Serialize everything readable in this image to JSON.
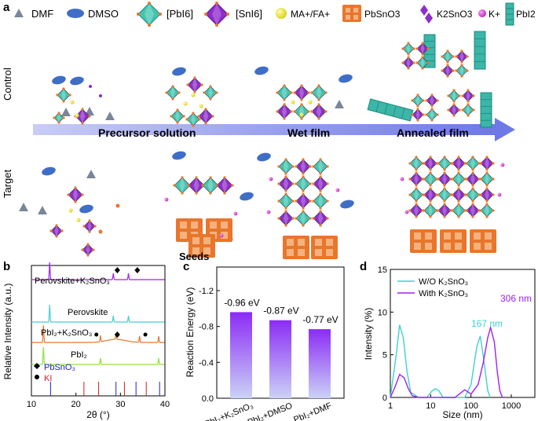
{
  "panels": {
    "a": "a",
    "b": "b",
    "c": "c",
    "d": "d"
  },
  "legend": {
    "dmf": "DMF",
    "dmso": "DMSO",
    "pbi6": "[PbI6]",
    "sni6": "[SnI6]",
    "mafa": "MA+/FA+",
    "pbsno3": "PbSnO3",
    "k2sno3": "K2SnO3",
    "kplus": "K+",
    "pbi2": "PbI2"
  },
  "panel_a": {
    "row_control": "Control",
    "row_target": "Target",
    "stage_precursor": "Precursor solution",
    "stage_wet": "Wet film",
    "stage_annealed": "Annealed film",
    "seeds": "Seeds"
  },
  "colors": {
    "dmf": "#7a8699",
    "dmso": "#3f6ec6",
    "pbi6": "#45c4b0",
    "sni6": "#8e2ec8",
    "mafa": "#ece43a",
    "pbsno3": "#e8762c",
    "kplus": "#d637d3",
    "pbi2": "#3bb6a8",
    "arrow": "#7f86e8",
    "b_purple": "#a020f0",
    "b_cyan": "#40d0d0",
    "b_orange": "#e8762c",
    "b_green": "#90e040",
    "b_blue": "#2020d0",
    "b_red": "#d02020"
  },
  "chart_data": [
    {
      "type": "line",
      "panel": "b",
      "xlabel": "2θ (°)",
      "ylabel": "Relative Intensity (a.u.)",
      "xlim": [
        10,
        40
      ],
      "xticks": [
        10,
        20,
        30,
        40
      ],
      "series": [
        {
          "name": "Perovskite+K2SnO3",
          "peaks": [
            14.1,
            28.4,
            31.8,
            40.2
          ],
          "marker_positions": [
            29.3,
            33.8
          ]
        },
        {
          "name": "Perovskite",
          "peaks": [
            14.1,
            28.4,
            31.8,
            40.2
          ]
        },
        {
          "name": "PbI2+K2SnO3",
          "peaks": [
            12.7,
            25.5,
            29.0,
            34.3,
            38.6
          ],
          "marker_positions": [
            24.6,
            29.3,
            35.6
          ]
        },
        {
          "name": "PbI2",
          "peaks": [
            12.7,
            25.5,
            38.6
          ]
        }
      ],
      "reference": [
        {
          "name": "PbSnO3",
          "marker": "◆",
          "sticks": [
            14.3,
            29.0,
            33.5,
            38.8
          ]
        },
        {
          "name": "KI",
          "marker": "●",
          "sticks": [
            21.8,
            25.1,
            30.9,
            35.8
          ]
        }
      ]
    },
    {
      "type": "bar",
      "panel": "c",
      "ylabel": "Reaction Energy (eV)",
      "categories": [
        "PbI2+K2SnO3",
        "PbI2+DMSO",
        "PbI2+DMF"
      ],
      "values": [
        -0.96,
        -0.87,
        -0.77
      ],
      "value_labels": [
        "-0.96 eV",
        "-0.87 eV",
        "-0.77 eV"
      ],
      "ylim": [
        0,
        -1.2
      ],
      "yticks": [
        "0.0",
        "-0.4",
        "-0.8",
        "-1.2"
      ]
    },
    {
      "type": "line",
      "panel": "d",
      "xlabel": "Size (nm)",
      "ylabel": "Intensity (%)",
      "xscale": "log",
      "xlim": [
        1,
        1000
      ],
      "ylim": [
        0,
        15
      ],
      "xticks": [
        "1",
        "10",
        "100",
        "1000"
      ],
      "yticks": [
        0,
        5,
        10,
        15
      ],
      "series": [
        {
          "name": "W/O K2SnO3",
          "x": [
            1,
            1.4,
            1.7,
            2.1,
            2.6,
            3.2,
            5,
            8,
            11,
            13,
            16,
            20,
            40,
            70,
            100,
            140,
            170,
            200,
            260,
            300
          ],
          "y": [
            0,
            5,
            8.5,
            7,
            3,
            0.6,
            0,
            0,
            0.8,
            1,
            0.8,
            0,
            0,
            0,
            1.5,
            6,
            7.2,
            5,
            0.8,
            0
          ]
        },
        {
          "name": "With K2SnO3",
          "x": [
            1,
            1.3,
            1.7,
            2.2,
            2.8,
            3.5,
            5,
            20,
            40,
            55,
            70,
            100,
            150,
            200,
            260,
            306,
            380,
            450,
            520,
            600
          ],
          "y": [
            0,
            1.2,
            2.7,
            2.3,
            1,
            0.2,
            0,
            0,
            0,
            0.5,
            0.9,
            0.4,
            1.5,
            4,
            7,
            8.2,
            6.5,
            3,
            0.8,
            0
          ]
        }
      ],
      "annotations": [
        {
          "text": "167 nm"
        },
        {
          "text": "306 nm"
        }
      ]
    }
  ]
}
